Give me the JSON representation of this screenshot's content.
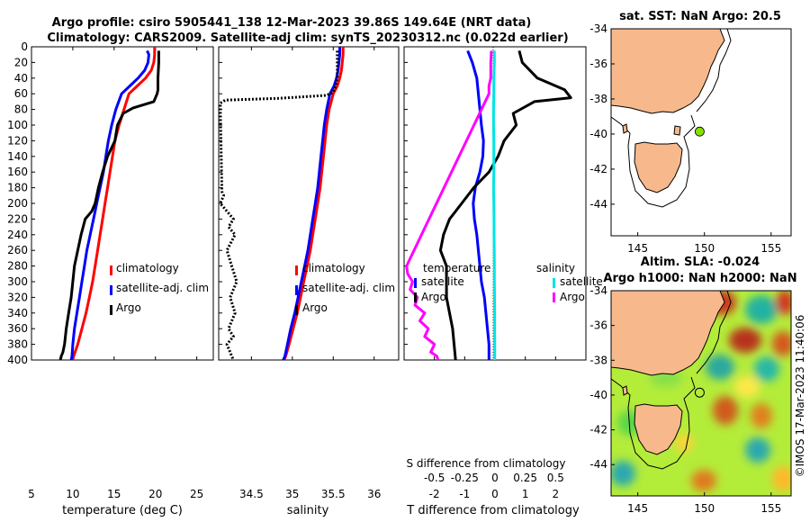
{
  "title_line1": "Argo profile: csiro 5905441_138 12-Mar-2023 39.86S 149.64E (NRT data)",
  "title_line2": "Climatology: CARS2009. Satellite-adj clim: synTS_20230312.nc (0.022d earlier)",
  "credit": "©IMOS 17-Mar-2023 11:40:06",
  "colors": {
    "climatology": "#ff0000",
    "satellite": "#0000ff",
    "argo": "#000000",
    "sal_sat": "#00e5e5",
    "sal_argo": "#ff00ff",
    "land": "#f7b98c",
    "sea": "#ffffff",
    "argo_marker": "#88e000"
  },
  "chart_data": [
    {
      "id": "temperature",
      "type": "line",
      "xlabel": "temperature (deg C)",
      "ylabel": "depth",
      "xlim": [
        5,
        27
      ],
      "ylim": [
        400,
        0
      ],
      "xticks": [
        5,
        10,
        15,
        20,
        25
      ],
      "xtick_labels": [
        "5",
        "10",
        "15",
        "20",
        "25"
      ],
      "yticks": [
        0,
        20,
        40,
        60,
        80,
        100,
        120,
        140,
        160,
        180,
        200,
        220,
        240,
        260,
        280,
        300,
        320,
        340,
        360,
        380,
        400
      ],
      "ytick_labels": [
        "0",
        "20",
        "40",
        "60",
        "80",
        "100",
        "120",
        "140",
        "160",
        "180",
        "200",
        "220",
        "240",
        "260",
        "280",
        "300",
        "320",
        "340",
        "360",
        "380",
        "400"
      ],
      "legend": [
        "climatology",
        "satellite-adj. clim",
        "Argo"
      ],
      "series": [
        {
          "name": "climatology",
          "color": "#ff0000",
          "x": [
            19.9,
            19.9,
            19.8,
            19.5,
            18.8,
            17.8,
            16.8,
            16.2,
            15.6,
            15.1,
            14.8,
            14.5,
            14.2,
            13.9,
            13.6,
            13.3,
            13.0,
            12.7,
            12.4,
            12.0,
            11.6,
            11.1,
            10.6,
            10.1,
            10.0
          ],
          "y": [
            0,
            10,
            20,
            30,
            40,
            50,
            60,
            80,
            100,
            120,
            140,
            160,
            180,
            200,
            220,
            240,
            260,
            280,
            300,
            320,
            340,
            360,
            380,
            395,
            400
          ]
        },
        {
          "name": "satellite-adj. clim",
          "color": "#0000ff",
          "x": [
            19.0,
            19.2,
            19.1,
            18.7,
            17.9,
            16.9,
            15.9,
            15.2,
            14.7,
            14.3,
            14.0,
            13.7,
            13.3,
            12.9,
            12.5,
            12.1,
            11.7,
            11.4,
            11.1,
            10.8,
            10.5,
            10.2,
            10.0,
            9.9,
            9.8
          ],
          "y": [
            5,
            10,
            20,
            30,
            40,
            50,
            60,
            80,
            100,
            120,
            140,
            160,
            180,
            200,
            220,
            240,
            260,
            280,
            300,
            320,
            340,
            360,
            380,
            395,
            400
          ]
        },
        {
          "name": "Argo",
          "color": "#000000",
          "x": [
            20.4,
            20.4,
            20.3,
            20.3,
            20.2,
            20.0,
            19.8,
            17.3,
            16.1,
            15.4,
            15.1,
            14.2,
            13.6,
            13.1,
            12.7,
            12.3,
            11.5,
            11.0,
            10.6,
            10.2,
            10.0,
            9.8,
            9.5,
            9.2,
            9.0,
            8.8,
            8.6,
            8.5
          ],
          "y": [
            5,
            20,
            40,
            55,
            60,
            65,
            70,
            78,
            85,
            100,
            120,
            140,
            160,
            180,
            200,
            210,
            220,
            240,
            260,
            280,
            300,
            320,
            340,
            360,
            380,
            390,
            395,
            400
          ]
        }
      ]
    },
    {
      "id": "salinity",
      "type": "line",
      "xlabel": "salinity",
      "ylabel": "depth",
      "xlim": [
        34.1,
        36.3
      ],
      "ylim": [
        400,
        0
      ],
      "xticks": [
        34.5,
        35,
        35.5,
        36
      ],
      "xtick_labels": [
        "34.5",
        "35",
        "35.5",
        "36"
      ],
      "legend": [
        "climatology",
        "satellite-adj. clim",
        "Argo"
      ],
      "series": [
        {
          "name": "climatology",
          "color": "#ff0000",
          "x": [
            35.62,
            35.62,
            35.61,
            35.6,
            35.58,
            35.55,
            35.5,
            35.45,
            35.42,
            35.4,
            35.38,
            35.36,
            35.34,
            35.31,
            35.28,
            35.25,
            35.22,
            35.18,
            35.14,
            35.1,
            35.06,
            35.01,
            34.96,
            34.92,
            34.9
          ],
          "y": [
            0,
            10,
            20,
            30,
            40,
            50,
            60,
            80,
            100,
            120,
            140,
            160,
            180,
            200,
            220,
            240,
            260,
            280,
            300,
            320,
            340,
            360,
            380,
            395,
            400
          ]
        },
        {
          "name": "satellite-adj. clim",
          "color": "#0000ff",
          "x": [
            35.58,
            35.58,
            35.57,
            35.56,
            35.54,
            35.51,
            35.46,
            35.42,
            35.39,
            35.37,
            35.35,
            35.33,
            35.31,
            35.28,
            35.25,
            35.22,
            35.19,
            35.15,
            35.11,
            35.07,
            35.03,
            34.98,
            34.94,
            34.91,
            34.89
          ],
          "y": [
            0,
            10,
            20,
            30,
            40,
            50,
            60,
            80,
            100,
            120,
            140,
            160,
            180,
            200,
            220,
            240,
            260,
            280,
            300,
            320,
            340,
            360,
            380,
            395,
            400
          ]
        },
        {
          "name": "Argo",
          "color": "#000000",
          "x": [
            35.55,
            35.55,
            35.55,
            35.53,
            35.5,
            35.42,
            34.8,
            34.18,
            34.15,
            34.12,
            34.12,
            34.14,
            34.16,
            34.12,
            34.2,
            34.28,
            34.22,
            34.3,
            34.2,
            34.26,
            34.32,
            34.24,
            34.3,
            34.22,
            34.28,
            34.2,
            34.26,
            34.28
          ],
          "y": [
            5,
            20,
            40,
            50,
            58,
            62,
            66,
            68,
            70,
            72,
            80,
            185,
            190,
            200,
            210,
            220,
            230,
            240,
            260,
            280,
            300,
            320,
            340,
            360,
            370,
            380,
            395,
            400
          ]
        }
      ]
    },
    {
      "id": "difference",
      "type": "line",
      "xlabel": "T difference from climatology",
      "xlim": [
        -3,
        3
      ],
      "ylim": [
        400,
        0
      ],
      "xticks": [
        -2,
        -1,
        0,
        1,
        2
      ],
      "xtick_labels": [
        "-2",
        "-1",
        "0",
        "1",
        "2"
      ],
      "top_xlabel": "S difference from climatology",
      "top_xlim": [
        -0.75,
        0.75
      ],
      "top_xticks": [
        -0.5,
        -0.25,
        0,
        0.25,
        0.5
      ],
      "top_xtick_labels": [
        "-0.5",
        "-0.25",
        "0",
        "0.25",
        "0.5"
      ],
      "legend_title_left": "temperature",
      "legend_title_right": "salinity",
      "legend": [
        "satellite",
        "Argo",
        "satellite",
        "Argo"
      ],
      "series": [
        {
          "name": "temperature satellite",
          "color": "#0000ff",
          "x": [
            -0.9,
            -0.75,
            -0.6,
            -0.55,
            -0.5,
            -0.45,
            -0.38,
            -0.4,
            -0.5,
            -0.65,
            -0.72,
            -0.68,
            -0.6,
            -0.55,
            -0.5,
            -0.45,
            -0.35,
            -0.3,
            -0.25,
            -0.2,
            -0.2
          ],
          "y": [
            5,
            20,
            40,
            60,
            80,
            100,
            120,
            140,
            160,
            180,
            200,
            220,
            240,
            260,
            280,
            300,
            320,
            340,
            360,
            380,
            400
          ]
        },
        {
          "name": "temperature Argo",
          "color": "#000000",
          "x": [
            0.8,
            0.9,
            1.4,
            2.3,
            2.5,
            1.3,
            0.6,
            0.7,
            0.3,
            0.1,
            -0.2,
            -0.7,
            -1.1,
            -1.5,
            -1.7,
            -1.8,
            -1.6,
            -1.6,
            -1.6,
            -1.5,
            -1.4,
            -1.3
          ],
          "y": [
            5,
            20,
            40,
            55,
            65,
            70,
            85,
            100,
            120,
            140,
            160,
            180,
            200,
            220,
            240,
            260,
            280,
            300,
            320,
            340,
            360,
            400
          ]
        },
        {
          "name": "salinity satellite",
          "color": "#00e5e5",
          "x": [
            -0.005,
            -0.005,
            -0.01,
            -0.01,
            -0.012,
            -0.012,
            -0.01,
            -0.01,
            -0.01,
            -0.012,
            -0.01,
            -0.008,
            -0.008,
            -0.006,
            -0.005,
            -0.005,
            -0.004,
            -0.003,
            -0.003,
            -0.002,
            -0.002
          ],
          "y": [
            5,
            20,
            40,
            60,
            80,
            100,
            120,
            140,
            160,
            180,
            200,
            220,
            240,
            260,
            280,
            300,
            320,
            340,
            360,
            380,
            400
          ]
        },
        {
          "name": "salinity Argo",
          "color": "#ff00ff",
          "x": [
            -0.03,
            -0.035,
            -0.035,
            -0.05,
            -0.05,
            -0.73,
            -0.72,
            -0.68,
            -0.7,
            -0.64,
            -0.66,
            -0.58,
            -0.62,
            -0.55,
            -0.58,
            -0.5,
            -0.53,
            -0.48,
            -0.47
          ],
          "y": [
            5,
            20,
            40,
            50,
            60,
            280,
            290,
            300,
            310,
            320,
            330,
            340,
            350,
            360,
            370,
            380,
            390,
            395,
            400
          ]
        }
      ]
    },
    {
      "id": "map_sst",
      "type": "map",
      "title": "sat. SST: NaN Argo: 20.5",
      "xlim": [
        143,
        156.5
      ],
      "ylim": [
        -45.8,
        -34
      ],
      "xticks": [
        145,
        150,
        155
      ],
      "xtick_labels": [
        "145",
        "150",
        "155"
      ],
      "yticks": [
        -34,
        -36,
        -38,
        -40,
        -42,
        -44
      ],
      "ytick_labels": [
        "-34",
        "-36",
        "-38",
        "-40",
        "-42",
        "-44"
      ],
      "argo_position": {
        "lon": 149.64,
        "lat": -39.86
      }
    },
    {
      "id": "map_sla",
      "type": "map",
      "title_line1": "Altim. SLA: -0.024",
      "title_line2": "Argo h1000: NaN h2000: NaN",
      "xlim": [
        143,
        156.5
      ],
      "ylim": [
        -45.8,
        -34
      ],
      "xticks": [
        145,
        150,
        155
      ],
      "xtick_labels": [
        "145",
        "150",
        "155"
      ],
      "yticks": [
        -34,
        -36,
        -38,
        -40,
        -42,
        -44
      ],
      "ytick_labels": [
        "-34",
        "-36",
        "-38",
        "-40",
        "-42",
        "-44"
      ],
      "argo_position": {
        "lon": 149.64,
        "lat": -39.86
      }
    }
  ]
}
